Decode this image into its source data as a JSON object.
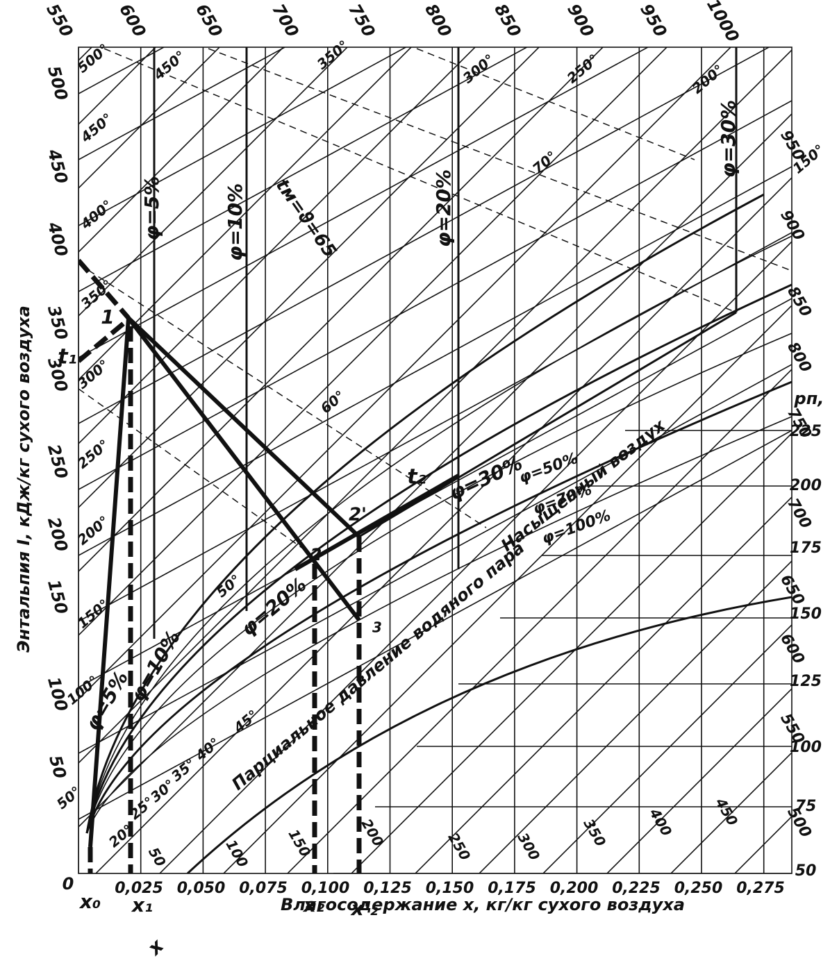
{
  "axes": {
    "y_title": "Энтальпия I, кДж/кг сухого воздуха",
    "x_title": "Влагосодержание x, кг/кг сухого воздуха",
    "origin": "0",
    "x_ticks": [
      "0,025",
      "0,050",
      "0,075",
      "0,100",
      "0,125",
      "0,150",
      "0,175",
      "0,200",
      "0,225",
      "0,250",
      "0,275"
    ],
    "left_ticks": [
      "500",
      "450",
      "400",
      "350",
      "300",
      "250",
      "200",
      "150",
      "100",
      "50"
    ],
    "top_ticks": [
      "550",
      "600",
      "650",
      "700",
      "750",
      "800",
      "850",
      "900",
      "950",
      "1000"
    ],
    "right_enthalpy_ticks": [
      "950",
      "900",
      "850",
      "800",
      "750",
      "700",
      "650",
      "600",
      "550",
      "500"
    ],
    "pressure_ticks": [
      "225",
      "200",
      "175",
      "150",
      "125",
      "100",
      "75",
      "50"
    ],
    "pressure_title": "pп,",
    "bottom_pressure_ticks": [
      "50",
      "100",
      "150",
      "200",
      "250",
      "300",
      "350",
      "400",
      "450"
    ]
  },
  "isotherms": [
    "500°",
    "450°",
    "400°",
    "350°",
    "300°",
    "250°",
    "200°",
    "150°",
    "100°",
    "50°",
    "450°",
    "350°",
    "300°",
    "250°",
    "200°",
    "150°",
    "70°",
    "60°",
    "50°",
    "45°",
    "40°",
    "35°",
    "30°",
    "25°",
    "20°"
  ],
  "humidity": [
    "φ=5%",
    "φ=10%",
    "φ=20%",
    "φ=30%",
    "φ=5%",
    "φ=10%",
    "φ=20%",
    "φ=30%",
    "φ=50%",
    "φ=70%",
    "φ=100%"
  ],
  "annotations": {
    "wet_bulb": "tм=ϑ=65",
    "saturated": "Насыщенный воздух",
    "partial": "Парциальное давление водяного пара",
    "t1": "t₁",
    "t2": "t₂",
    "p1": "1",
    "p2": "2",
    "p2p": "2'",
    "p3": "3",
    "x0": "x₀",
    "x1": "x₁",
    "x2": "x₂",
    "x2p": "x'₂",
    "x": "x"
  }
}
